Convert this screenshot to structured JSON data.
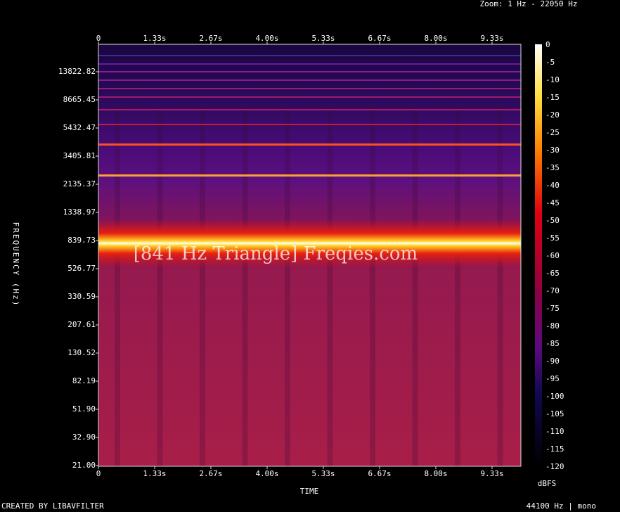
{
  "header": {
    "zoom": "Zoom: 1 Hz - 22050 Hz"
  },
  "x_axis": {
    "label": "TIME",
    "ticks": [
      "0",
      "1.33s",
      "2.67s",
      "4.00s",
      "5.33s",
      "6.67s",
      "8.00s",
      "9.33s"
    ]
  },
  "y_axis": {
    "label": "FREQUENCY (Hz)",
    "ticks": [
      "13822.82",
      "8665.45",
      "5432.47",
      "3405.81",
      "2135.37",
      "1338.97",
      "839.73",
      "526.77",
      "330.59",
      "207.61",
      "130.52",
      "82.19",
      "51.90",
      "32.90",
      "21.00"
    ]
  },
  "colorbar": {
    "unit": "dBFS",
    "ticks": [
      "0",
      "-5",
      "-10",
      "-15",
      "-20",
      "-25",
      "-30",
      "-35",
      "-40",
      "-45",
      "-50",
      "-55",
      "-60",
      "-65",
      "-70",
      "-75",
      "-80",
      "-85",
      "-90",
      "-95",
      "-100",
      "-105",
      "-110",
      "-115",
      "-120"
    ]
  },
  "watermark": "[841 Hz Triangle] Freqies.com",
  "footer": {
    "left": "CREATED BY LIBAVFILTER",
    "right": "44100 Hz | mono"
  }
}
